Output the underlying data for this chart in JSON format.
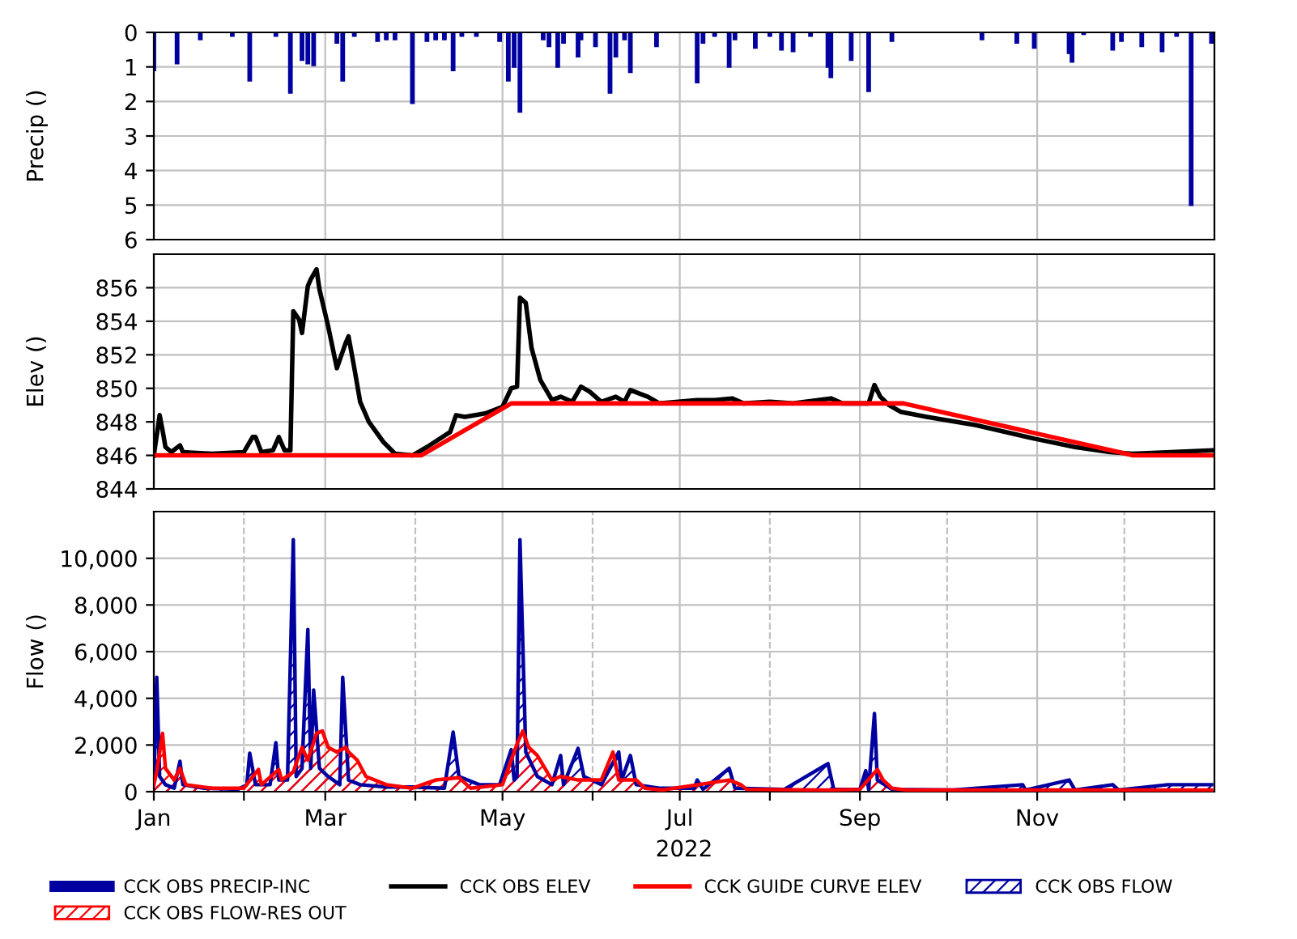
{
  "chart_data": [
    {
      "type": "bar",
      "ylabel": "Precip ()",
      "ylim": [
        6,
        0
      ],
      "yticks": [
        0,
        1,
        2,
        3,
        4,
        5,
        6
      ],
      "xlim": [
        "2022-01-01",
        "2023-01-01"
      ],
      "xticks": [
        {
          "value": "2022-01-01",
          "label": null
        },
        {
          "value": "2022-03-01",
          "label": null
        },
        {
          "value": "2022-05-01",
          "label": null
        },
        {
          "value": "2022-07-01",
          "label": null
        },
        {
          "value": "2022-09-01",
          "label": null
        },
        {
          "value": "2022-11-01",
          "label": null
        }
      ],
      "tick_labels": "y",
      "grid": true,
      "legend": "bottom",
      "series": [
        {
          "name": "CCK OBS PRECIP-INC",
          "color": "#0000a0",
          "x": [
            "2022-01-01",
            "2022-01-09",
            "2022-01-17",
            "2022-01-28",
            "2022-02-03",
            "2022-02-12",
            "2022-02-17",
            "2022-02-21",
            "2022-02-23",
            "2022-02-25",
            "2022-03-05",
            "2022-03-07",
            "2022-03-11",
            "2022-03-19",
            "2022-03-22",
            "2022-03-25",
            "2022-03-31",
            "2022-04-05",
            "2022-04-08",
            "2022-04-11",
            "2022-04-14",
            "2022-04-17",
            "2022-04-22",
            "2022-04-30",
            "2022-05-03",
            "2022-05-05",
            "2022-05-07",
            "2022-05-15",
            "2022-05-17",
            "2022-05-20",
            "2022-05-22",
            "2022-05-27",
            "2022-05-28",
            "2022-06-02",
            "2022-06-07",
            "2022-06-09",
            "2022-06-12",
            "2022-06-14",
            "2022-06-23",
            "2022-07-07",
            "2022-07-09",
            "2022-07-13",
            "2022-07-18",
            "2022-07-20",
            "2022-07-27",
            "2022-08-01",
            "2022-08-05",
            "2022-08-09",
            "2022-08-15",
            "2022-08-21",
            "2022-08-22",
            "2022-08-29",
            "2022-09-04",
            "2022-09-12",
            "2022-10-13",
            "2022-10-25",
            "2022-10-31",
            "2022-11-12",
            "2022-11-13",
            "2022-11-17",
            "2022-11-27",
            "2022-11-30",
            "2022-12-07",
            "2022-12-14",
            "2022-12-19",
            "2022-12-24",
            "2022-12-31"
          ],
          "values": [
            1.1,
            0.9,
            0.2,
            0.1,
            1.4,
            0.1,
            1.75,
            0.8,
            0.9,
            0.95,
            0.3,
            1.4,
            0.1,
            0.25,
            0.2,
            0.2,
            2.05,
            0.25,
            0.2,
            0.2,
            1.1,
            0.1,
            0.1,
            0.25,
            1.4,
            1.0,
            2.3,
            0.2,
            0.4,
            1.0,
            0.3,
            0.7,
            0.2,
            0.4,
            1.75,
            0.7,
            0.2,
            1.15,
            0.4,
            1.45,
            0.3,
            0.1,
            1.0,
            0.2,
            0.45,
            0.1,
            0.5,
            0.55,
            0.1,
            1.0,
            1.3,
            0.8,
            1.7,
            0.25,
            0.2,
            0.3,
            0.45,
            0.6,
            0.85,
            0.05,
            0.5,
            0.25,
            0.4,
            0.55,
            0.1,
            5.0,
            0.3
          ]
        }
      ]
    },
    {
      "type": "line",
      "ylabel": "Elev ()",
      "ylim": [
        844,
        858
      ],
      "yticks": [
        844,
        846,
        848,
        850,
        852,
        854,
        856
      ],
      "xlim": [
        "2022-01-01",
        "2023-01-01"
      ],
      "xticks": [
        {
          "value": "2022-01-01",
          "label": null
        },
        {
          "value": "2022-03-01",
          "label": null
        },
        {
          "value": "2022-05-01",
          "label": null
        },
        {
          "value": "2022-07-01",
          "label": null
        },
        {
          "value": "2022-09-01",
          "label": null
        },
        {
          "value": "2022-11-01",
          "label": null
        }
      ],
      "tick_labels": "y",
      "grid": true,
      "legend": "bottom",
      "line_style": "solid",
      "series": [
        {
          "name": "CCK OBS ELEV",
          "color": "#000000",
          "x": [
            "2022-01-01",
            "2022-01-03",
            "2022-01-04",
            "2022-01-05",
            "2022-01-07",
            "2022-01-10",
            "2022-01-11",
            "2022-01-21",
            "2022-02-01",
            "2022-02-04",
            "2022-02-05",
            "2022-02-07",
            "2022-02-11",
            "2022-02-13",
            "2022-02-15",
            "2022-02-17",
            "2022-02-18",
            "2022-02-20",
            "2022-02-21",
            "2022-02-23",
            "2022-02-24",
            "2022-02-26",
            "2022-02-27",
            "2022-03-02",
            "2022-03-05",
            "2022-03-08",
            "2022-03-09",
            "2022-03-11",
            "2022-03-13",
            "2022-03-16",
            "2022-03-21",
            "2022-03-25",
            "2022-03-31",
            "2022-04-05",
            "2022-04-13",
            "2022-04-15",
            "2022-04-18",
            "2022-04-25",
            "2022-05-01",
            "2022-05-04",
            "2022-05-06",
            "2022-05-07",
            "2022-05-09",
            "2022-05-11",
            "2022-05-14",
            "2022-05-18",
            "2022-05-21",
            "2022-05-25",
            "2022-05-28",
            "2022-05-31",
            "2022-06-04",
            "2022-06-09",
            "2022-06-12",
            "2022-06-14",
            "2022-06-20",
            "2022-06-24",
            "2022-07-07",
            "2022-07-13",
            "2022-07-19",
            "2022-07-23",
            "2022-08-01",
            "2022-08-09",
            "2022-08-22",
            "2022-08-26",
            "2022-09-04",
            "2022-09-06",
            "2022-09-08",
            "2022-09-11",
            "2022-09-15",
            "2022-09-24",
            "2022-10-11",
            "2022-10-31",
            "2022-11-14",
            "2022-11-26",
            "2022-12-04",
            "2022-12-31"
          ],
          "values": [
            846.0,
            848.4,
            847.5,
            846.5,
            846.2,
            846.6,
            846.2,
            846.1,
            846.2,
            847.1,
            847.1,
            846.2,
            846.3,
            847.1,
            846.3,
            846.3,
            854.6,
            854.1,
            853.3,
            856.1,
            856.5,
            857.1,
            855.9,
            853.7,
            851.2,
            852.7,
            853.1,
            851.2,
            849.2,
            848.0,
            846.8,
            846.1,
            846.0,
            846.5,
            847.4,
            848.4,
            848.3,
            848.5,
            848.9,
            850.0,
            850.1,
            855.4,
            855.1,
            852.4,
            850.5,
            849.3,
            849.5,
            849.2,
            850.1,
            849.8,
            849.2,
            849.5,
            849.2,
            849.9,
            849.5,
            849.1,
            849.3,
            849.3,
            849.4,
            849.1,
            849.2,
            849.1,
            849.4,
            849.1,
            849.1,
            850.2,
            849.5,
            849.0,
            848.6,
            848.3,
            847.8,
            847.0,
            846.5,
            846.2,
            846.1,
            846.3
          ]
        },
        {
          "name": "CCK GUIDE CURVE ELEV",
          "color": "#ff0000",
          "x": [
            "2022-01-01",
            "2022-04-03",
            "2022-05-04",
            "2022-09-16",
            "2022-12-04",
            "2022-12-31"
          ],
          "values": [
            846.0,
            846.0,
            849.1,
            849.1,
            846.0,
            846.0
          ]
        }
      ]
    },
    {
      "type": "area",
      "ylabel": "Flow ()",
      "xlabel": "2022",
      "ylim": [
        0,
        12000
      ],
      "yticks": [
        0,
        {
          "value": 2000,
          "label": "2,000"
        },
        {
          "value": 4000,
          "label": "4,000"
        },
        {
          "value": 6000,
          "label": "6,000"
        },
        {
          "value": 8000,
          "label": "8,000"
        },
        {
          "value": 10000,
          "label": "10,000"
        }
      ],
      "xlim": [
        "2022-01-01",
        "2023-01-01"
      ],
      "xticks": [
        {
          "value": "2022-01-01",
          "label": "Jan"
        },
        {
          "value": "2022-02-01",
          "label": null
        },
        {
          "value": "2022-03-01",
          "label": "Mar"
        },
        {
          "value": "2022-04-01",
          "label": null
        },
        {
          "value": "2022-05-01",
          "label": "May"
        },
        {
          "value": "2022-06-01",
          "label": null
        },
        {
          "value": "2022-07-01",
          "label": "Jul"
        },
        {
          "value": "2022-08-01",
          "label": null
        },
        {
          "value": "2022-09-01",
          "label": "Sep"
        },
        {
          "value": "2022-10-01",
          "label": null
        },
        {
          "value": "2022-11-01",
          "label": "Nov"
        },
        {
          "value": "2022-12-01",
          "label": null
        }
      ],
      "grid": true,
      "legend": "bottom",
      "series": [
        {
          "name": "CCK OBS FLOW",
          "color": "#0000a0",
          "x": [
            "2022-01-01",
            "2022-01-02",
            "2022-01-03",
            "2022-01-05",
            "2022-01-08",
            "2022-01-10",
            "2022-01-11",
            "2022-01-18",
            "2022-01-30",
            "2022-02-02",
            "2022-02-03",
            "2022-02-05",
            "2022-02-10",
            "2022-02-12",
            "2022-02-13",
            "2022-02-16",
            "2022-02-18",
            "2022-02-19",
            "2022-02-21",
            "2022-02-23",
            "2022-02-24",
            "2022-02-25",
            "2022-02-27",
            "2022-03-02",
            "2022-03-06",
            "2022-03-07",
            "2022-03-09",
            "2022-03-13",
            "2022-03-22",
            "2022-03-31",
            "2022-04-11",
            "2022-04-14",
            "2022-04-16",
            "2022-04-23",
            "2022-04-30",
            "2022-05-04",
            "2022-05-05",
            "2022-05-06",
            "2022-05-07",
            "2022-05-09",
            "2022-05-13",
            "2022-05-18",
            "2022-05-21",
            "2022-05-22",
            "2022-05-27",
            "2022-05-29",
            "2022-06-04",
            "2022-06-10",
            "2022-06-11",
            "2022-06-14",
            "2022-06-16",
            "2022-06-24",
            "2022-07-06",
            "2022-07-07",
            "2022-07-09",
            "2022-07-18",
            "2022-07-20",
            "2022-08-06",
            "2022-08-21",
            "2022-08-23",
            "2022-09-01",
            "2022-09-03",
            "2022-09-04",
            "2022-09-06",
            "2022-09-07",
            "2022-09-12",
            "2022-10-03",
            "2022-10-27",
            "2022-10-28",
            "2022-11-12",
            "2022-11-14",
            "2022-11-27",
            "2022-11-29",
            "2022-12-16",
            "2022-12-31"
          ],
          "values": [
            300,
            4900,
            650,
            300,
            150,
            1300,
            300,
            150,
            100,
            300,
            1650,
            300,
            300,
            2100,
            500,
            500,
            10800,
            650,
            1000,
            6950,
            1000,
            4350,
            1000,
            650,
            300,
            4900,
            500,
            300,
            200,
            200,
            150,
            2550,
            650,
            300,
            300,
            1800,
            500,
            650,
            10800,
            1700,
            650,
            300,
            1550,
            300,
            1850,
            650,
            300,
            1700,
            500,
            1550,
            300,
            150,
            150,
            500,
            100,
            1000,
            150,
            100,
            1200,
            100,
            100,
            900,
            100,
            3350,
            500,
            100,
            70,
            300,
            70,
            500,
            70,
            300,
            70,
            300,
            300
          ]
        },
        {
          "name": "CCK OBS FLOW-RES OUT",
          "color": "#ff0000",
          "x": [
            "2022-01-01",
            "2022-01-02",
            "2022-01-04",
            "2022-01-05",
            "2022-01-08",
            "2022-01-10",
            "2022-01-12",
            "2022-01-21",
            "2022-02-01",
            "2022-02-06",
            "2022-02-07",
            "2022-02-13",
            "2022-02-14",
            "2022-02-18",
            "2022-02-21",
            "2022-02-23",
            "2022-02-26",
            "2022-02-28",
            "2022-03-02",
            "2022-03-05",
            "2022-03-08",
            "2022-03-09",
            "2022-03-12",
            "2022-03-15",
            "2022-03-22",
            "2022-03-31",
            "2022-04-08",
            "2022-04-16",
            "2022-04-20",
            "2022-05-01",
            "2022-05-05",
            "2022-05-06",
            "2022-05-08",
            "2022-05-10",
            "2022-05-13",
            "2022-05-18",
            "2022-05-21",
            "2022-05-27",
            "2022-06-04",
            "2022-06-08",
            "2022-06-10",
            "2022-06-13",
            "2022-06-16",
            "2022-06-19",
            "2022-06-25",
            "2022-07-18",
            "2022-07-22",
            "2022-07-24",
            "2022-08-21",
            "2022-09-01",
            "2022-09-07",
            "2022-09-09",
            "2022-09-12",
            "2022-09-17",
            "2022-12-31"
          ],
          "values": [
            300,
            850,
            2500,
            1000,
            500,
            1000,
            300,
            150,
            150,
            950,
            300,
            950,
            500,
            850,
            1900,
            1350,
            2500,
            2600,
            1900,
            1700,
            1900,
            1700,
            1350,
            650,
            300,
            150,
            500,
            600,
            150,
            300,
            1700,
            2050,
            2600,
            1900,
            1550,
            500,
            650,
            500,
            500,
            1700,
            500,
            500,
            500,
            150,
            70,
            500,
            300,
            100,
            70,
            100,
            950,
            500,
            150,
            70,
            70
          ]
        }
      ]
    }
  ]
}
